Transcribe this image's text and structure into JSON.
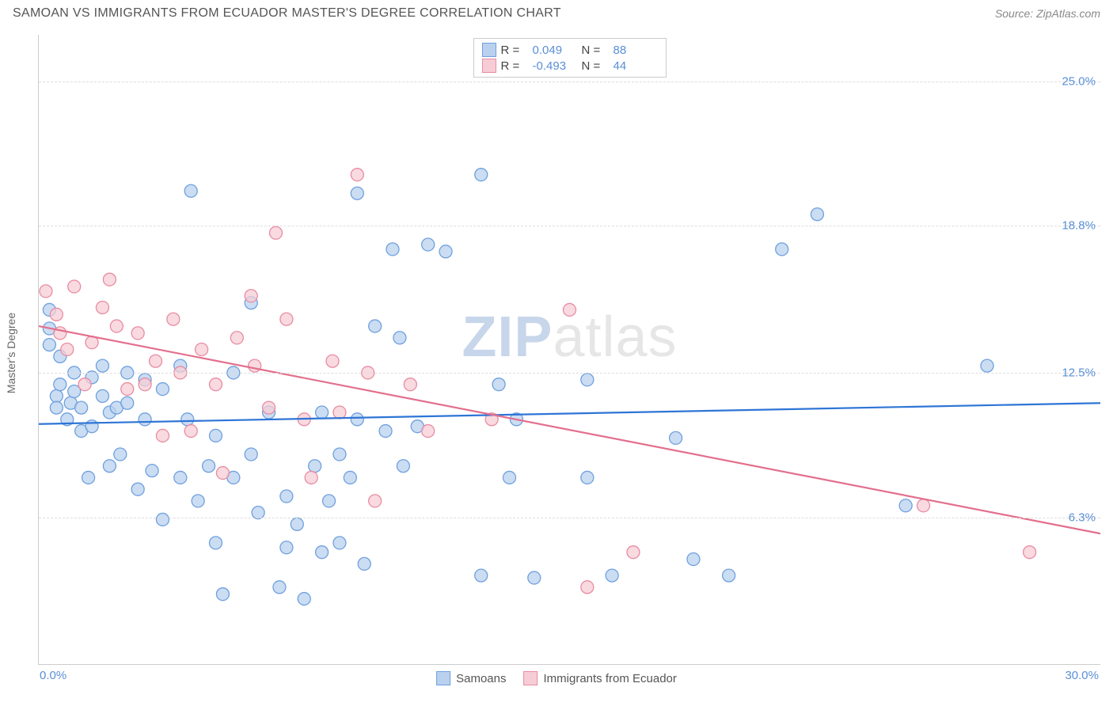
{
  "title": "SAMOAN VS IMMIGRANTS FROM ECUADOR MASTER'S DEGREE CORRELATION CHART",
  "source": "Source: ZipAtlas.com",
  "watermark_prefix": "ZIP",
  "watermark_suffix": "atlas",
  "y_axis_title": "Master's Degree",
  "chart": {
    "type": "scatter-with-regression",
    "xlim": [
      0,
      30
    ],
    "ylim": [
      0,
      27
    ],
    "x_ticks": [
      {
        "v": 0,
        "label": "0.0%"
      },
      {
        "v": 30,
        "label": "30.0%"
      }
    ],
    "y_ticks": [
      {
        "v": 6.3,
        "label": "6.3%"
      },
      {
        "v": 12.5,
        "label": "12.5%"
      },
      {
        "v": 18.8,
        "label": "18.8%"
      },
      {
        "v": 25.0,
        "label": "25.0%"
      }
    ],
    "background_color": "#ffffff",
    "grid_color": "#dddddd",
    "marker_radius": 8,
    "marker_stroke_width": 1.3,
    "trend_line_width": 2.2
  },
  "series": [
    {
      "name": "Samoans",
      "fill": "#b9d1ef",
      "stroke": "#6fa0de",
      "line_color": "#2e75d6",
      "R": "0.049",
      "N": "88",
      "trend": {
        "x1": 0,
        "y1": 10.3,
        "x2": 30,
        "y2": 11.2
      },
      "points": [
        [
          0.3,
          15.2
        ],
        [
          0.3,
          14.4
        ],
        [
          0.3,
          13.7
        ],
        [
          0.5,
          11.5
        ],
        [
          0.5,
          11.0
        ],
        [
          0.6,
          12.0
        ],
        [
          0.6,
          13.2
        ],
        [
          0.8,
          10.5
        ],
        [
          0.9,
          11.2
        ],
        [
          1.0,
          12.5
        ],
        [
          1.0,
          11.7
        ],
        [
          1.2,
          10.0
        ],
        [
          1.2,
          11.0
        ],
        [
          1.4,
          8.0
        ],
        [
          1.5,
          12.3
        ],
        [
          1.5,
          10.2
        ],
        [
          1.8,
          11.5
        ],
        [
          1.8,
          12.8
        ],
        [
          2.0,
          8.5
        ],
        [
          2.0,
          10.8
        ],
        [
          2.2,
          11.0
        ],
        [
          2.3,
          9.0
        ],
        [
          2.5,
          12.5
        ],
        [
          2.5,
          11.2
        ],
        [
          2.8,
          7.5
        ],
        [
          3.0,
          12.2
        ],
        [
          3.0,
          10.5
        ],
        [
          3.2,
          8.3
        ],
        [
          3.5,
          11.8
        ],
        [
          3.5,
          6.2
        ],
        [
          4.0,
          12.8
        ],
        [
          4.0,
          8.0
        ],
        [
          4.2,
          10.5
        ],
        [
          4.3,
          20.3
        ],
        [
          4.5,
          7.0
        ],
        [
          4.8,
          8.5
        ],
        [
          5.0,
          9.8
        ],
        [
          5.0,
          5.2
        ],
        [
          5.2,
          3.0
        ],
        [
          5.5,
          12.5
        ],
        [
          5.5,
          8.0
        ],
        [
          6.0,
          15.5
        ],
        [
          6.0,
          9.0
        ],
        [
          6.2,
          6.5
        ],
        [
          6.5,
          10.8
        ],
        [
          6.8,
          3.3
        ],
        [
          7.0,
          5.0
        ],
        [
          7.0,
          7.2
        ],
        [
          7.3,
          6.0
        ],
        [
          7.5,
          2.8
        ],
        [
          7.8,
          8.5
        ],
        [
          8.0,
          10.8
        ],
        [
          8.0,
          4.8
        ],
        [
          8.2,
          7.0
        ],
        [
          8.5,
          9.0
        ],
        [
          8.5,
          5.2
        ],
        [
          8.8,
          8.0
        ],
        [
          9.0,
          10.5
        ],
        [
          9.0,
          20.2
        ],
        [
          9.2,
          4.3
        ],
        [
          9.5,
          14.5
        ],
        [
          9.8,
          10.0
        ],
        [
          10.0,
          17.8
        ],
        [
          10.2,
          14.0
        ],
        [
          10.3,
          8.5
        ],
        [
          10.7,
          10.2
        ],
        [
          11.0,
          18.0
        ],
        [
          11.5,
          17.7
        ],
        [
          12.5,
          3.8
        ],
        [
          12.5,
          21.0
        ],
        [
          13.0,
          12.0
        ],
        [
          13.3,
          8.0
        ],
        [
          13.5,
          10.5
        ],
        [
          14.0,
          3.7
        ],
        [
          15.5,
          8.0
        ],
        [
          15.5,
          12.2
        ],
        [
          16.2,
          3.8
        ],
        [
          18.0,
          9.7
        ],
        [
          18.5,
          4.5
        ],
        [
          19.5,
          3.8
        ],
        [
          21.0,
          17.8
        ],
        [
          22.0,
          19.3
        ],
        [
          24.5,
          6.8
        ],
        [
          26.8,
          12.8
        ]
      ]
    },
    {
      "name": "Immigrants from Ecuador",
      "fill": "#f6cdd6",
      "stroke": "#e98ca2",
      "line_color": "#e36f8d",
      "R": "-0.493",
      "N": "44",
      "trend": {
        "x1": 0,
        "y1": 14.5,
        "x2": 30,
        "y2": 5.6
      },
      "points": [
        [
          0.2,
          16.0
        ],
        [
          0.5,
          15.0
        ],
        [
          0.6,
          14.2
        ],
        [
          0.8,
          13.5
        ],
        [
          1.0,
          16.2
        ],
        [
          1.3,
          12.0
        ],
        [
          1.5,
          13.8
        ],
        [
          1.8,
          15.3
        ],
        [
          2.0,
          16.5
        ],
        [
          2.2,
          14.5
        ],
        [
          2.5,
          11.8
        ],
        [
          2.8,
          14.2
        ],
        [
          3.0,
          12.0
        ],
        [
          3.3,
          13.0
        ],
        [
          3.5,
          9.8
        ],
        [
          3.8,
          14.8
        ],
        [
          4.0,
          12.5
        ],
        [
          4.3,
          10.0
        ],
        [
          4.6,
          13.5
        ],
        [
          5.0,
          12.0
        ],
        [
          5.2,
          8.2
        ],
        [
          5.6,
          14.0
        ],
        [
          6.0,
          15.8
        ],
        [
          6.1,
          12.8
        ],
        [
          6.5,
          11.0
        ],
        [
          6.7,
          18.5
        ],
        [
          7.0,
          14.8
        ],
        [
          7.5,
          10.5
        ],
        [
          7.7,
          8.0
        ],
        [
          8.3,
          13.0
        ],
        [
          8.5,
          10.8
        ],
        [
          9.0,
          21.0
        ],
        [
          9.3,
          12.5
        ],
        [
          9.5,
          7.0
        ],
        [
          10.5,
          12.0
        ],
        [
          11.0,
          10.0
        ],
        [
          12.8,
          10.5
        ],
        [
          15.0,
          15.2
        ],
        [
          15.5,
          3.3
        ],
        [
          16.8,
          4.8
        ],
        [
          25.0,
          6.8
        ],
        [
          28.0,
          4.8
        ]
      ]
    }
  ],
  "legend_top_labels": {
    "R": "R =",
    "N": "N ="
  },
  "legend_bottom": [
    "Samoans",
    "Immigrants from Ecuador"
  ]
}
